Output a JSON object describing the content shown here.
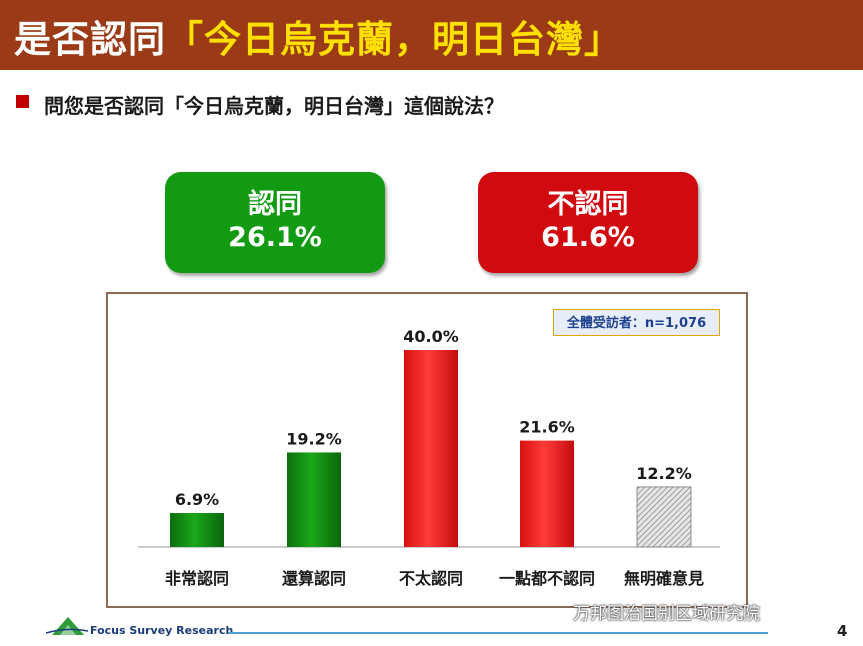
{
  "header": {
    "title_main": "是否認同",
    "title_quote": "「今日烏克蘭，明日台灣」"
  },
  "question": "問您是否認同「今日烏克蘭，明日台灣」這個說法？",
  "summary": {
    "agree": {
      "label": "認同",
      "value": "26.1%",
      "color": "#129b12"
    },
    "disagree": {
      "label": "不認同",
      "value": "61.6%",
      "color": "#d10a10"
    }
  },
  "sample_note": "全體受訪者：n=1,076",
  "chart_data": {
    "type": "bar",
    "title": "",
    "xlabel": "",
    "ylabel": "",
    "ylim": [
      0,
      45
    ],
    "grid": false,
    "categories": [
      "非常認同",
      "還算認同",
      "不太認同",
      "一點都不認同",
      "無明確意見"
    ],
    "values": [
      6.9,
      19.2,
      40.0,
      21.6,
      12.2
    ],
    "value_labels": [
      "6.9%",
      "19.2%",
      "40.0%",
      "21.6%",
      "12.2%"
    ],
    "colors": [
      "#108a10",
      "#108a10",
      "#e81919",
      "#e81919",
      "hatched-gray"
    ]
  },
  "footer": {
    "org": "Focus Survey Research",
    "watermark": "万邦图治国别区域研究院",
    "page_number": "4"
  }
}
